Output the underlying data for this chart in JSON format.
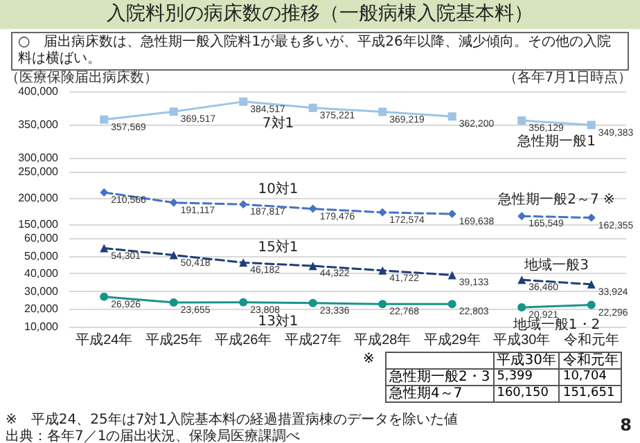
{
  "chart_data": [
    {
      "type": "line",
      "title": "入院料別の病床数の推移（一般病棟入院基本料）",
      "subtitle": "○　届出病床数は、急性期一般入院料1が最も多いが、平成26年以降、減少傾向。その他の入院料は横ばい。",
      "ylabel": "（医療保険届出病床数）",
      "annotations": [
        "（各年7月1日時点）"
      ],
      "categories": [
        null,
        null,
        null,
        null,
        null,
        null,
        null,
        null
      ],
      "series": [
        {
          "name": "7対1",
          "color": "#9dc3e6",
          "marker": "square",
          "line_style": "solid",
          "values": [
            357569,
            369517,
            384517,
            375221,
            369219,
            362200,
            null,
            null
          ],
          "value_labels": [
            "357,569",
            "369,517",
            "384,517",
            "375,221",
            "369,219",
            "362,200",
            null,
            null
          ]
        },
        {
          "name": "急性期一般1",
          "color": "#9dc3e6",
          "marker": "square",
          "line_style": "solid",
          "values": [
            null,
            null,
            null,
            null,
            null,
            null,
            356129,
            349383
          ],
          "value_labels": [
            null,
            null,
            null,
            null,
            null,
            null,
            "356,129",
            "349,383"
          ]
        }
      ],
      "ylim": [
        300000,
        400000
      ],
      "yticks": [
        {
          "value": 300000,
          "label": "300,000"
        },
        {
          "value": 350000,
          "label": "350,000"
        },
        {
          "value": 400000,
          "label": "400,000"
        }
      ],
      "grid": "y",
      "legend": false,
      "tick_labels": "y"
    },
    {
      "type": "line",
      "categories": [
        null,
        null,
        null,
        null,
        null,
        null,
        null,
        null
      ],
      "series": [
        {
          "name": "10対1",
          "color": "#4472c4",
          "marker": "diamond",
          "line_style": "dashed",
          "values": [
            210566,
            191117,
            187817,
            179476,
            172574,
            169638,
            null,
            null
          ],
          "value_labels": [
            "210,566",
            "191,117",
            "187,817",
            "179,476",
            "172,574",
            "169,638",
            null,
            null
          ]
        },
        {
          "name": "急性期一般2～7 ※",
          "color": "#4472c4",
          "marker": "diamond",
          "line_style": "dashed",
          "values": [
            null,
            null,
            null,
            null,
            null,
            null,
            165549,
            162355
          ],
          "value_labels": [
            null,
            null,
            null,
            null,
            null,
            null,
            "165,549",
            "162,355"
          ]
        }
      ],
      "ylim": [
        150000,
        250000
      ],
      "yticks": [
        {
          "value": 150000,
          "label": "150,000"
        },
        {
          "value": 200000,
          "label": "200,000"
        },
        {
          "value": 250000,
          "label": "250,000"
        }
      ],
      "grid": "y",
      "legend": false,
      "tick_labels": "y"
    },
    {
      "type": "line",
      "annotations": [
        "※　平成24、25年は7対1入院基本料の経過措置病棟のデータを除いた値",
        "出典：各年7／1の届出状況、保険局医療課調べ",
        "8"
      ],
      "categories": [
        "平成24年",
        "平成25年",
        "平成26年",
        "平成27年",
        "平成28年",
        "平成29年",
        "平成30年",
        "令和元年"
      ],
      "series": [
        {
          "name": "15対1",
          "color": "#1f3d7a",
          "marker": "triangle",
          "line_style": "dashed",
          "values": [
            54301,
            50418,
            46182,
            44322,
            41722,
            39133,
            null,
            null
          ],
          "value_labels": [
            "54,301",
            "50,418",
            "46,182",
            "44,322",
            "41,722",
            "39,133",
            null,
            null
          ]
        },
        {
          "name": "13対1",
          "color": "#17948a",
          "marker": "circle",
          "line_style": "solid",
          "values": [
            26926,
            23655,
            23808,
            23336,
            22768,
            22803,
            null,
            null
          ],
          "value_labels": [
            "26,926",
            "23,655",
            "23,808",
            "23,336",
            "22,768",
            "22,803",
            null,
            null
          ]
        },
        {
          "name": "地域一般3",
          "color": "#1f3d7a",
          "marker": "triangle",
          "line_style": "dashed",
          "values": [
            null,
            null,
            null,
            null,
            null,
            null,
            36460,
            33924
          ],
          "value_labels": [
            null,
            null,
            null,
            null,
            null,
            null,
            "36,460",
            "33,924"
          ]
        },
        {
          "name": "地域一般1・2",
          "color": "#17948a",
          "marker": "circle",
          "line_style": "solid",
          "values": [
            null,
            null,
            null,
            null,
            null,
            null,
            20921,
            22296
          ],
          "value_labels": [
            null,
            null,
            null,
            null,
            null,
            null,
            "20,921",
            "22,296"
          ]
        }
      ],
      "ylim": [
        10000,
        60000
      ],
      "yticks": [
        {
          "value": 10000,
          "label": "10,000"
        },
        {
          "value": 20000,
          "label": "20,000"
        },
        {
          "value": 30000,
          "label": "30,000"
        },
        {
          "value": 40000,
          "label": "40,000"
        },
        {
          "value": 50000,
          "label": "50,000"
        },
        {
          "value": 60000,
          "label": "60,000"
        }
      ],
      "grid": "y",
      "legend": false
    },
    {
      "type": "other",
      "annotations": [
        "※",
        "平成30年",
        "令和元年",
        "急性期一般2・3",
        "5,399",
        "10,704",
        "急性期4～7",
        "160,150",
        "151,651"
      ]
    }
  ]
}
